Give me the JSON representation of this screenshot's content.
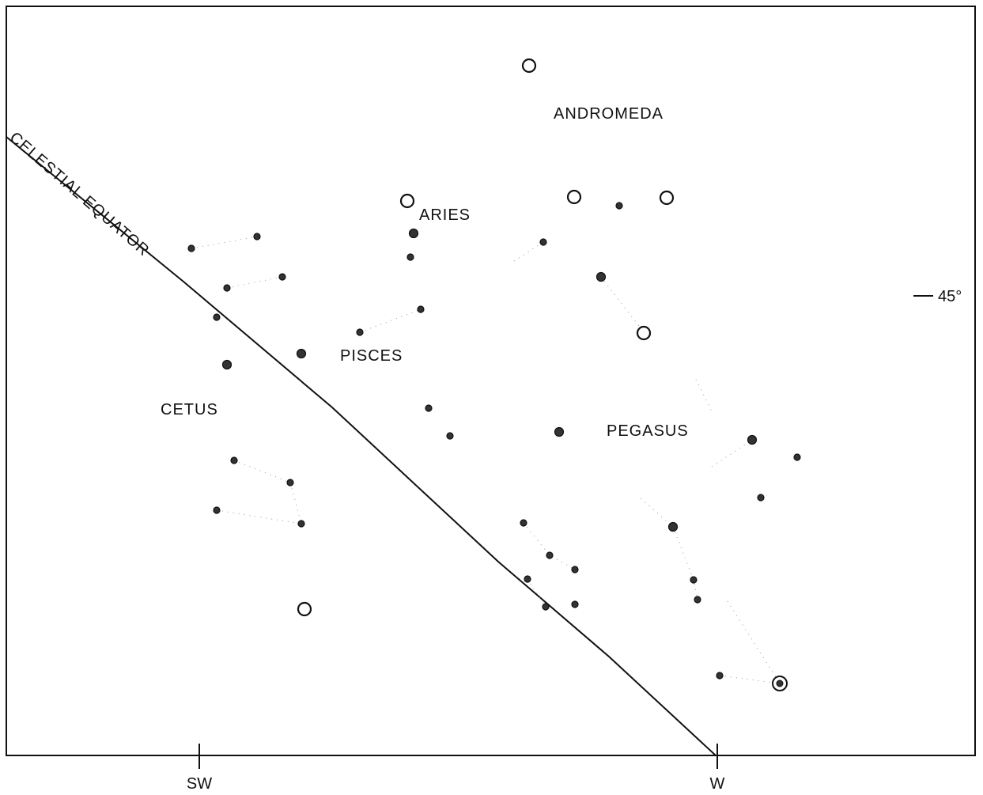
{
  "constellations": {
    "andromeda": "ANDROMEDA",
    "aries": "ARIES",
    "pisces": "PISCES",
    "cetus": "CETUS",
    "pegasus": "PEGASUS"
  },
  "equator_label": "CELESTIAL EQUATOR",
  "altitude_tick": "45°",
  "direction_ticks": {
    "sw": "SW",
    "w": "W"
  },
  "colors": {
    "ink": "#111111",
    "background": "#ffffff",
    "star_fill": "#333333"
  }
}
